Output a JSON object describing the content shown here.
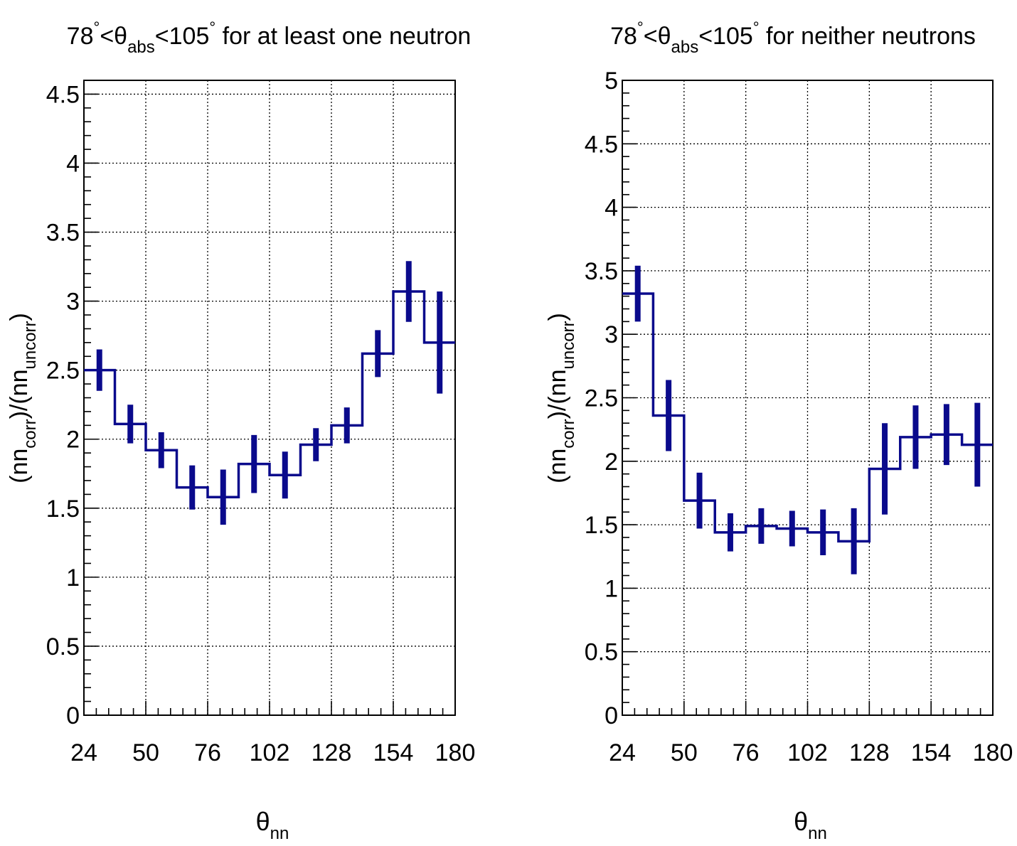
{
  "chart_data": [
    {
      "type": "line",
      "title": {
        "pre": "78",
        "deg1": "°",
        "lt": "<θ",
        "sub": "abs",
        "lt2": "<105",
        "deg2": "°",
        "rest": " for at least one neutron"
      },
      "xlabel": {
        "base": "θ",
        "sub": "nn"
      },
      "ylabel": {
        "open": "(nn",
        "sub1": "corr",
        "mid": ")/(nn",
        "sub2": "uncorr",
        "close": ")"
      },
      "xlim": [
        24,
        180
      ],
      "ylim": [
        0,
        4.6
      ],
      "x_ticks": [
        "24",
        "50",
        "76",
        "102",
        "128",
        "154",
        "180"
      ],
      "y_ticks": [
        "0",
        "0.5",
        "1",
        "1.5",
        "2",
        "2.5",
        "3",
        "3.5",
        "4",
        "4.5"
      ],
      "grid": true,
      "series": [
        {
          "color": "#0a0a8c",
          "bin_edges": [
            24,
            37,
            50,
            63,
            76,
            89,
            102,
            115,
            128,
            141,
            154,
            167,
            180
          ],
          "values": [
            2.5,
            2.11,
            1.92,
            1.65,
            1.58,
            1.82,
            1.74,
            1.96,
            2.1,
            2.62,
            3.07,
            2.7
          ],
          "errors": [
            0.15,
            0.14,
            0.13,
            0.16,
            0.2,
            0.21,
            0.17,
            0.12,
            0.13,
            0.17,
            0.22,
            0.37
          ]
        }
      ]
    },
    {
      "type": "line",
      "title": {
        "pre": "78",
        "deg1": "°",
        "lt": "<θ",
        "sub": "abs",
        "lt2": "<105",
        "deg2": "°",
        "rest": " for neither neutrons"
      },
      "xlabel": {
        "base": "θ",
        "sub": "nn"
      },
      "ylabel": {
        "open": "(nn",
        "sub1": "corr",
        "mid": ")/(nn",
        "sub2": "uncorr",
        "close": ")"
      },
      "xlim": [
        24,
        180
      ],
      "ylim": [
        0,
        5
      ],
      "x_ticks": [
        "24",
        "50",
        "76",
        "102",
        "128",
        "154",
        "180"
      ],
      "y_ticks": [
        "0",
        "0.5",
        "1",
        "1.5",
        "2",
        "2.5",
        "3",
        "3.5",
        "4",
        "4.5",
        "5"
      ],
      "grid": true,
      "series": [
        {
          "color": "#0a0a8c",
          "bin_edges": [
            24,
            37,
            50,
            63,
            76,
            89,
            102,
            115,
            128,
            141,
            154,
            167,
            180
          ],
          "values": [
            3.32,
            2.36,
            1.69,
            1.44,
            1.49,
            1.47,
            1.44,
            1.37,
            1.94,
            2.19,
            2.21,
            2.13
          ],
          "errors": [
            0.22,
            0.28,
            0.22,
            0.15,
            0.14,
            0.14,
            0.18,
            0.26,
            0.36,
            0.25,
            0.24,
            0.33
          ]
        }
      ]
    }
  ]
}
